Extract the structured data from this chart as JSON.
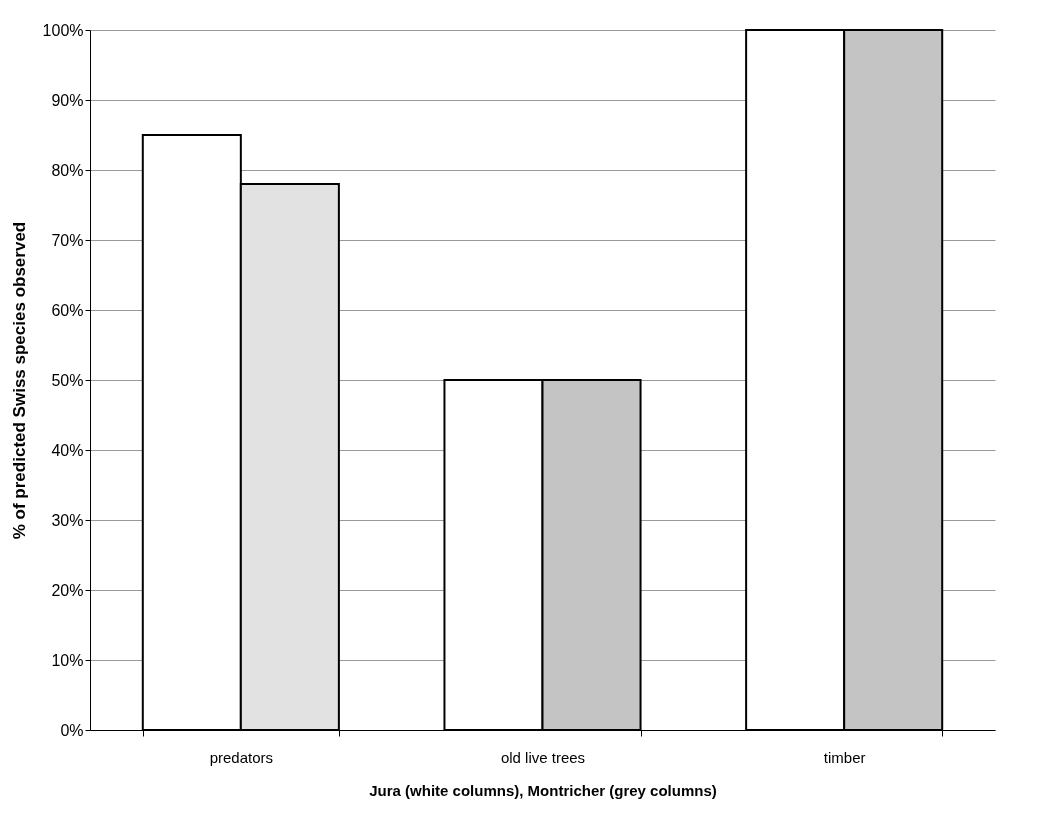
{
  "chart_data": {
    "type": "bar",
    "xlabel": "Jura (white columns),  Montricher (grey columns)",
    "ylabel": "% of predicted Swiss species observed",
    "categories": [
      "predators",
      "old live trees",
      "timber"
    ],
    "series": [
      {
        "color": "#ffffff",
        "values": [
          85,
          50,
          100
        ]
      },
      {
        "colors": [
          "#e2e2e2",
          "#c4c4c4",
          "#c4c4c4"
        ],
        "values": [
          78,
          50,
          100
        ]
      }
    ],
    "ylim": [
      0,
      100
    ],
    "yticks": [
      {
        "value": 0,
        "label": "0%"
      },
      {
        "value": 10,
        "label": "10%"
      },
      {
        "value": 20,
        "label": "20%"
      },
      {
        "value": 30,
        "label": "30%"
      },
      {
        "value": 40,
        "label": "40%"
      },
      {
        "value": 50,
        "label": "50%"
      },
      {
        "value": 60,
        "label": "60%"
      },
      {
        "value": 70,
        "label": "70%"
      },
      {
        "value": 80,
        "label": "80%"
      },
      {
        "value": 90,
        "label": "90%"
      },
      {
        "value": 100,
        "label": "100%"
      }
    ],
    "grid": "y"
  }
}
